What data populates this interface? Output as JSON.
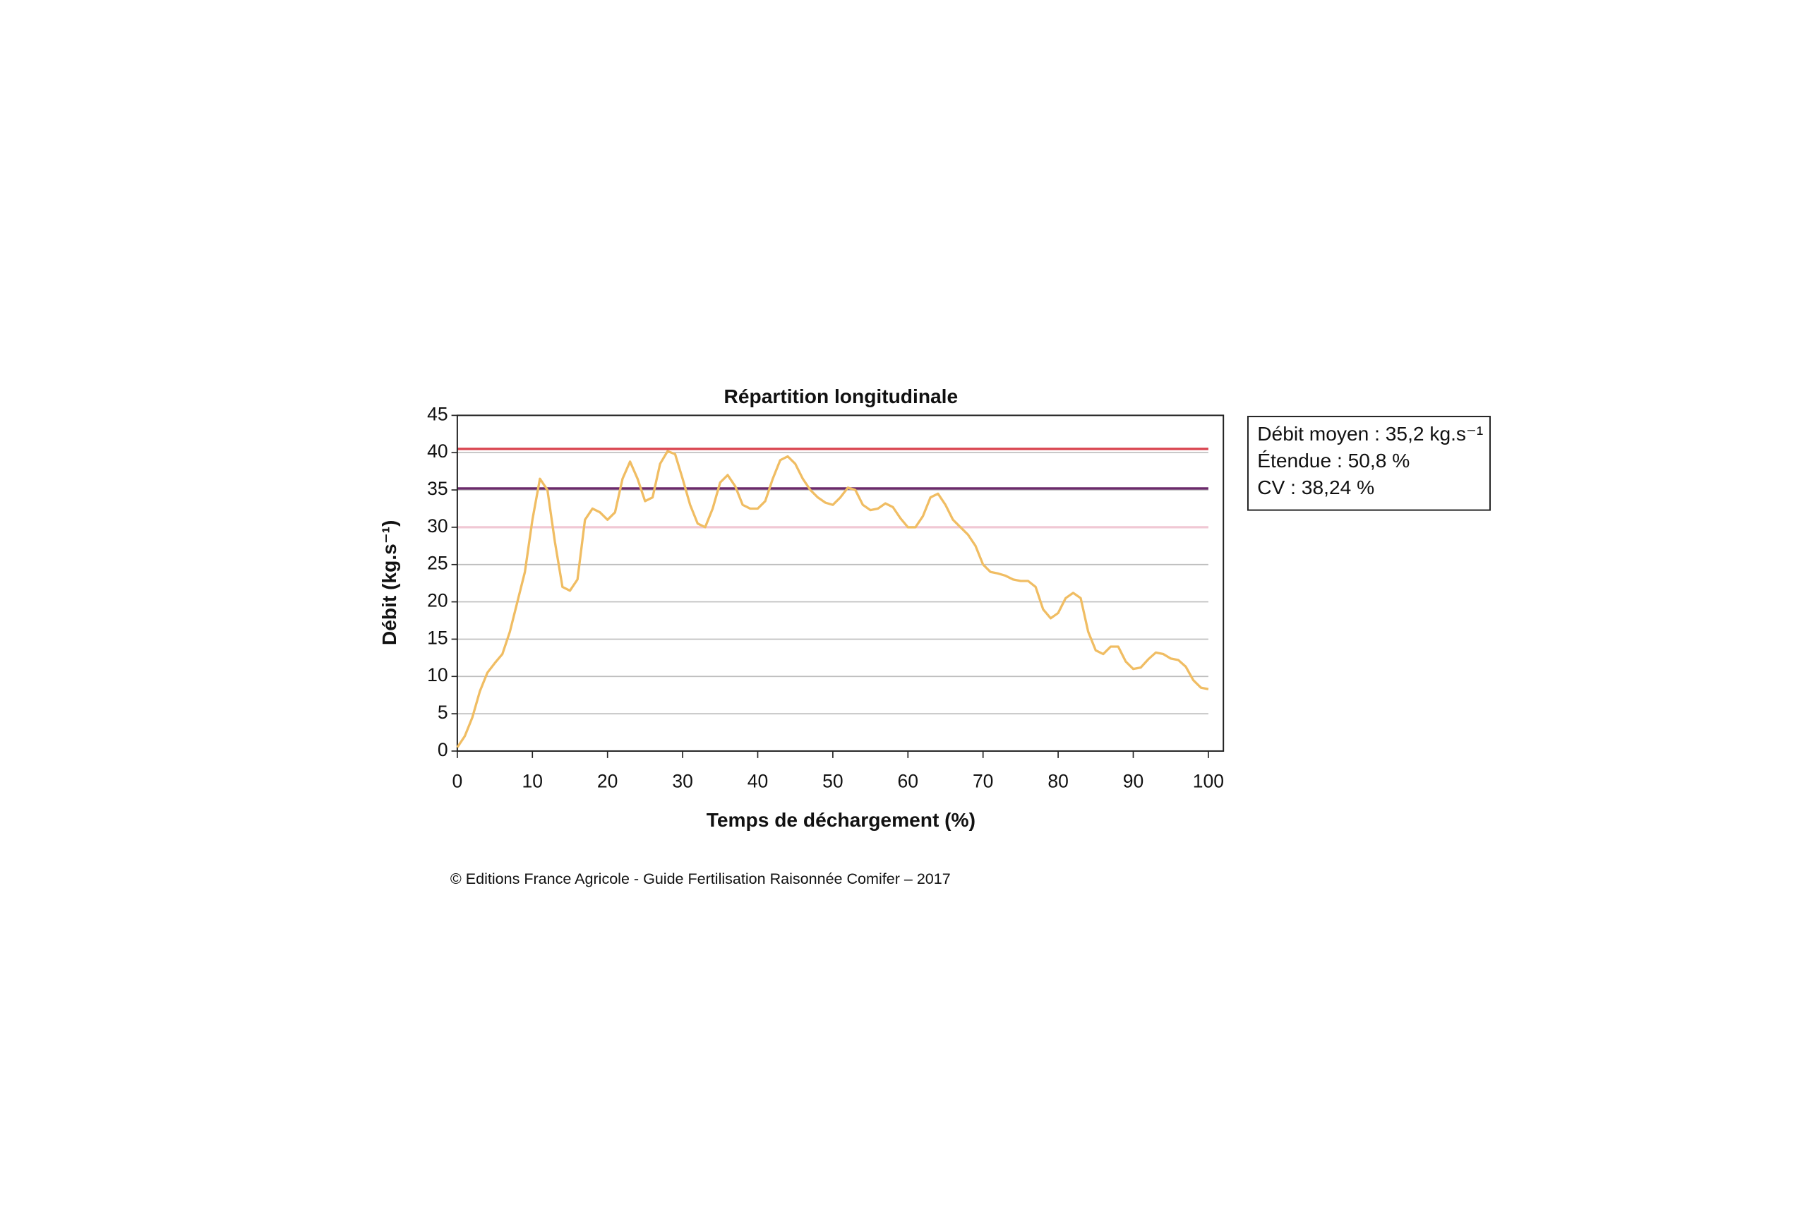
{
  "chart_data": {
    "type": "line",
    "title": "Répartition longitudinale",
    "x_label": "Temps de déchargement (%)",
    "y_label": "Débit (kg.s⁻¹)",
    "annotations": [
      "Débit moyen : 35,2 kg.s⁻¹",
      "Étendue : 50,8 %",
      "CV : 38,24 %"
    ],
    "source": "© Editions France Agricole - Guide Fertilisation Raisonnée Comifer – 2017",
    "xlim": [
      0,
      102
    ],
    "ylim": [
      0,
      45
    ],
    "xticks": [
      0,
      10,
      20,
      30,
      40,
      50,
      60,
      70,
      80,
      90,
      100
    ],
    "yticks": [
      0,
      5,
      10,
      15,
      20,
      25,
      30,
      35,
      40,
      45
    ],
    "grid": true,
    "reference_lines": [
      {
        "value": 40.5,
        "color": "#d9434e"
      },
      {
        "value": 35.2,
        "color": "#6b2a6b"
      },
      {
        "value": 30,
        "color": "#f0c8d4"
      }
    ],
    "x": [
      0,
      1,
      2,
      3,
      4,
      5,
      6,
      7,
      8,
      9,
      10,
      11,
      12,
      13,
      14,
      15,
      16,
      17,
      18,
      19,
      20,
      21,
      22,
      23,
      24,
      25,
      26,
      27,
      28,
      29,
      30,
      31,
      32,
      33,
      34,
      35,
      36,
      37,
      38,
      39,
      40,
      41,
      42,
      43,
      44,
      45,
      46,
      47,
      48,
      49,
      50,
      51,
      52,
      53,
      54,
      55,
      56,
      57,
      58,
      59,
      60,
      61,
      62,
      63,
      64,
      65,
      66,
      67,
      68,
      69,
      70,
      71,
      72,
      73,
      74,
      75,
      76,
      77,
      78,
      79,
      80,
      81,
      82,
      83,
      84,
      85,
      86,
      87,
      88,
      89,
      90,
      91,
      92,
      93,
      94,
      95,
      96,
      97,
      98,
      99,
      100
    ],
    "series": [
      {
        "color": "#f0bd63",
        "values": [
          0.5,
          2,
          4.5,
          8,
          10.5,
          11.8,
          13,
          16,
          20,
          24,
          31,
          36.5,
          35,
          28,
          22,
          21.5,
          23,
          31,
          32.5,
          32,
          31,
          32,
          36.5,
          38.8,
          36.5,
          33.5,
          34,
          38.5,
          40.2,
          39.8,
          36.5,
          33,
          30.5,
          30,
          32.5,
          36,
          37,
          35.5,
          33,
          32.5,
          32.5,
          33.5,
          36.5,
          39,
          39.5,
          38.5,
          36.5,
          35,
          34,
          33.3,
          33,
          34,
          35.3,
          35,
          33,
          32.3,
          32.5,
          33.2,
          32.7,
          31.2,
          30,
          30,
          31.5,
          34,
          34.5,
          33,
          31,
          30,
          29,
          27.5,
          25,
          24,
          23.8,
          23.5,
          23,
          22.8,
          22.8,
          22,
          19,
          17.8,
          18.5,
          20.5,
          21.2,
          20.5,
          16,
          13.5,
          13,
          14,
          14,
          12,
          11,
          11.2,
          12.3,
          13.2,
          13,
          12.4,
          12.2,
          11.3,
          9.5,
          8.5,
          8.3
        ]
      }
    ]
  }
}
